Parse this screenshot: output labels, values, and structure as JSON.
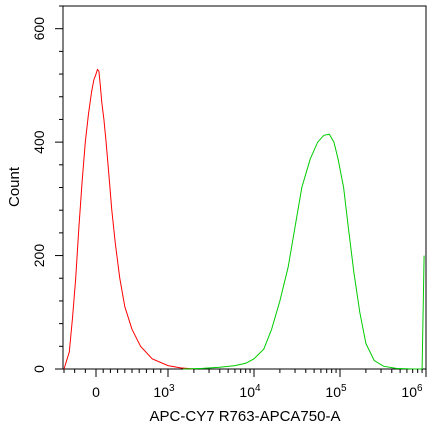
{
  "chart_data": {
    "type": "line",
    "title": "",
    "xlabel": "APC-CY7 R763-APCA750-A",
    "ylabel": "Count",
    "x_scale": "biexponential",
    "x_tick_labels": [
      "0",
      "10^3",
      "10^4",
      "10^5",
      "10^6"
    ],
    "y_tick_labels": [
      "0",
      "200",
      "400",
      "600"
    ],
    "xlim": [
      -300,
      1000000
    ],
    "ylim": [
      0,
      640
    ],
    "grid": false,
    "legend": "none",
    "series": [
      {
        "color": "#ff0000",
        "points": [
          [
            -300,
            0
          ],
          [
            -250,
            30
          ],
          [
            -220,
            90
          ],
          [
            -190,
            160
          ],
          [
            -160,
            250
          ],
          [
            -130,
            330
          ],
          [
            -100,
            400
          ],
          [
            -70,
            450
          ],
          [
            -40,
            490
          ],
          [
            -20,
            510
          ],
          [
            0,
            520
          ],
          [
            20,
            528
          ],
          [
            40,
            525
          ],
          [
            60,
            500
          ],
          [
            80,
            470
          ],
          [
            110,
            440
          ],
          [
            140,
            400
          ],
          [
            180,
            340
          ],
          [
            220,
            280
          ],
          [
            270,
            220
          ],
          [
            330,
            160
          ],
          [
            400,
            110
          ],
          [
            500,
            70
          ],
          [
            620,
            40
          ],
          [
            780,
            18
          ],
          [
            1000,
            6
          ],
          [
            1400,
            2
          ],
          [
            2000,
            0
          ]
        ]
      },
      {
        "color": "#00cc00",
        "points": [
          [
            1500,
            0
          ],
          [
            2500,
            1
          ],
          [
            4000,
            3
          ],
          [
            6000,
            6
          ],
          [
            8000,
            10
          ],
          [
            10000,
            18
          ],
          [
            13000,
            35
          ],
          [
            16000,
            70
          ],
          [
            20000,
            120
          ],
          [
            25000,
            180
          ],
          [
            30000,
            250
          ],
          [
            36000,
            320
          ],
          [
            45000,
            370
          ],
          [
            55000,
            400
          ],
          [
            65000,
            412
          ],
          [
            75000,
            414
          ],
          [
            85000,
            400
          ],
          [
            95000,
            370
          ],
          [
            110000,
            320
          ],
          [
            125000,
            250
          ],
          [
            145000,
            170
          ],
          [
            170000,
            100
          ],
          [
            200000,
            45
          ],
          [
            250000,
            15
          ],
          [
            320000,
            5
          ],
          [
            450000,
            1
          ],
          [
            700000,
            0
          ],
          [
            900000,
            0
          ],
          [
            950000,
            200
          ]
        ]
      }
    ]
  }
}
